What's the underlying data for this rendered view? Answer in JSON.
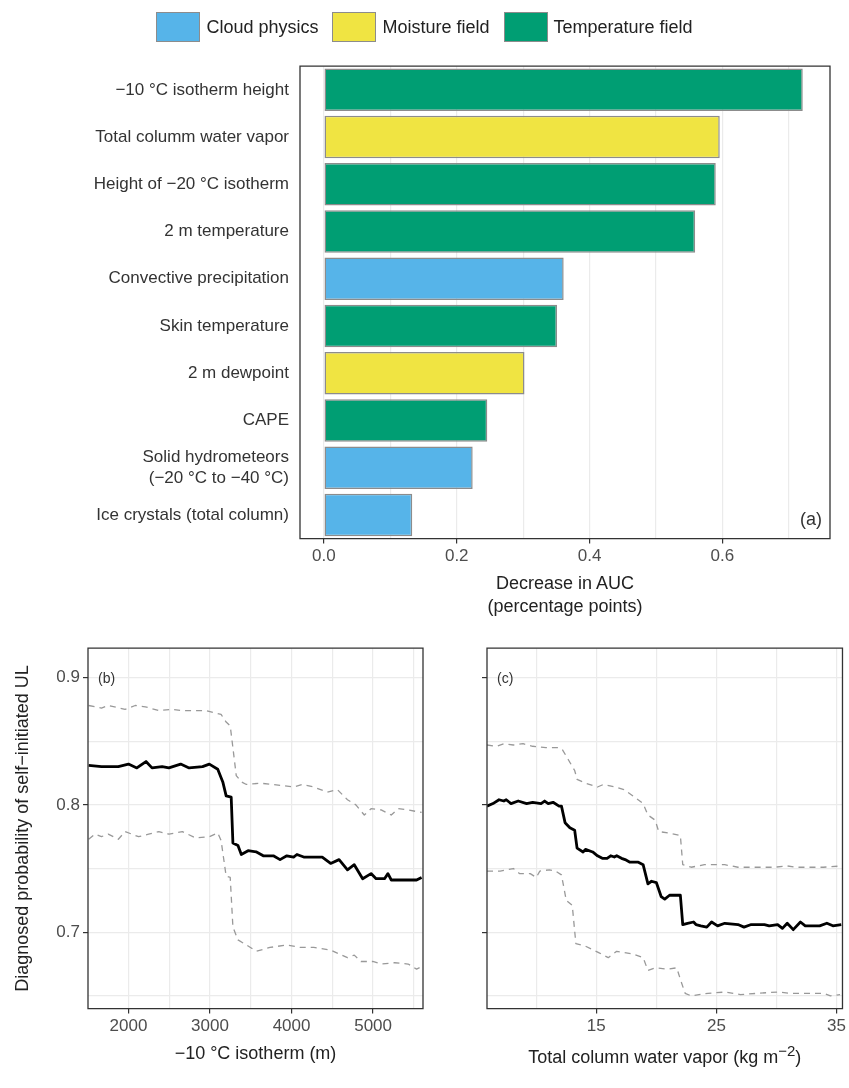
{
  "chart_data": [
    {
      "type": "bar",
      "orientation": "horizontal",
      "stacked": true,
      "legend": "top",
      "grid": "x",
      "categories": [
        "−10 °C isotherm height",
        "Total columm water vapor",
        "Height of −20 °C isotherm",
        "2 m temperature",
        "Convective precipitation",
        "Skin temperature",
        "2 m dewpoint",
        "CAPE",
        "Solid hydrometeors\n(−20 °C to −40 °C)",
        "Ice crystals (total column)"
      ],
      "series": [
        {
          "name": "Cloud physics",
          "color": "#56b4e9",
          "values": [
            null,
            null,
            null,
            null,
            0.361,
            null,
            null,
            null,
            0.224,
            0.133
          ]
        },
        {
          "name": "Moisture field",
          "color": "#f0e442",
          "values": [
            null,
            0.596,
            null,
            null,
            null,
            null,
            0.302,
            null,
            null,
            null
          ]
        },
        {
          "name": "Temperature field",
          "color": "#009e73",
          "values": [
            0.721,
            null,
            0.59,
            0.559,
            null,
            0.351,
            null,
            0.246,
            null,
            null
          ]
        }
      ],
      "xlim": [
        -0.036,
        0.762
      ],
      "xticks": [
        {
          "value": 0,
          "label": "0.0"
        },
        {
          "value": 0.1,
          "label": null
        },
        0.2,
        {
          "value": 0.3,
          "label": null
        },
        0.4,
        {
          "value": 0.5,
          "label": null
        },
        0.6,
        {
          "value": 0.7,
          "label": null
        }
      ],
      "xlabel": "Decrease in AUC\n(percentage points)",
      "annotations": [
        "(a)"
      ]
    },
    {
      "type": "line",
      "grid": true,
      "ylabel": "Diagnosed probability of self−initiated UL",
      "xlabel": "−10 °C isotherm (m)",
      "xlim": [
        1504,
        5612
      ],
      "xticks": [
        2000,
        {
          "value": 2500,
          "label": null
        },
        3000,
        {
          "value": 3500,
          "label": null
        },
        4000,
        {
          "value": 4500,
          "label": null
        },
        5000,
        {
          "value": 5500,
          "label": null
        }
      ],
      "ylim": [
        0.64,
        0.923
      ],
      "yticks": [
        {
          "value": 0.65,
          "label": null
        },
        0.7,
        {
          "value": 0.75,
          "label": null
        },
        0.8,
        {
          "value": 0.85,
          "label": null
        },
        0.9
      ],
      "series": [
        {
          "color": "#000000",
          "line_style": "solid",
          "x": [
            1512,
            1669,
            1876,
            2000,
            2103,
            2215,
            2289,
            2413,
            2496,
            2640,
            2744,
            2909,
            2992,
            3095,
            3157,
            3198,
            3260,
            3281,
            3343,
            3384,
            3467,
            3570,
            3653,
            3777,
            3859,
            3942,
            4025,
            4066,
            4149,
            4273,
            4376,
            4479,
            4583,
            4686,
            4769,
            4872,
            4975,
            5037,
            5140,
            5182,
            5223,
            5430,
            5533,
            5595
          ],
          "values": [
            0.831,
            0.83,
            0.83,
            0.832,
            0.829,
            0.834,
            0.829,
            0.83,
            0.829,
            0.832,
            0.829,
            0.83,
            0.832,
            0.828,
            0.818,
            0.807,
            0.806,
            0.77,
            0.768,
            0.761,
            0.764,
            0.763,
            0.76,
            0.76,
            0.757,
            0.76,
            0.759,
            0.761,
            0.759,
            0.759,
            0.759,
            0.754,
            0.757,
            0.749,
            0.753,
            0.742,
            0.746,
            0.742,
            0.742,
            0.746,
            0.741,
            0.741,
            0.741,
            0.743
          ]
        },
        {
          "color": "#999999",
          "line_style": "dashed",
          "x": [
            1512,
            1669,
            1752,
            1959,
            2083,
            2207,
            2372,
            2537,
            2661,
            2785,
            2950,
            3074,
            3136,
            3198,
            3248,
            3273,
            3322,
            3384,
            3446,
            3612,
            3777,
            4025,
            4128,
            4273,
            4438,
            4562,
            4686,
            4789,
            4892,
            4975,
            5099,
            5223,
            5306,
            5430,
            5595
          ],
          "values": [
            0.878,
            0.876,
            0.878,
            0.875,
            0.878,
            0.877,
            0.874,
            0.875,
            0.874,
            0.874,
            0.874,
            0.872,
            0.871,
            0.865,
            0.862,
            0.849,
            0.823,
            0.818,
            0.816,
            0.817,
            0.816,
            0.814,
            0.816,
            0.814,
            0.81,
            0.812,
            0.804,
            0.8,
            0.792,
            0.797,
            0.796,
            0.792,
            0.797,
            0.796,
            0.794
          ]
        },
        {
          "color": "#999999",
          "line_style": "dashed",
          "x": [
            1512,
            1587,
            1669,
            1752,
            1876,
            1959,
            2124,
            2248,
            2372,
            2496,
            2661,
            2826,
            2992,
            3095,
            3136,
            3198,
            3248,
            3281,
            3343,
            3446,
            3570,
            3735,
            3942,
            4107,
            4273,
            4479,
            4686,
            4769,
            4851,
            4996,
            5099,
            5264,
            5430,
            5533,
            5595
          ],
          "values": [
            0.773,
            0.777,
            0.775,
            0.777,
            0.773,
            0.779,
            0.775,
            0.777,
            0.779,
            0.777,
            0.779,
            0.774,
            0.775,
            0.778,
            0.772,
            0.744,
            0.743,
            0.704,
            0.694,
            0.69,
            0.685,
            0.688,
            0.69,
            0.688,
            0.688,
            0.686,
            0.68,
            0.682,
            0.677,
            0.677,
            0.675,
            0.676,
            0.675,
            0.671,
            0.673
          ]
        }
      ],
      "annotations": [
        "(b)"
      ]
    },
    {
      "type": "line",
      "grid": true,
      "tick_labels": "x",
      "xlabel": "Total column water vapor (kg m$^{−2}$)",
      "xlim": [
        5.9,
        35.5
      ],
      "xticks": [
        {
          "value": 10,
          "label": null
        },
        15,
        {
          "value": 20,
          "label": null
        },
        25,
        {
          "value": 30,
          "label": null
        },
        35
      ],
      "ylim": [
        0.64,
        0.923
      ],
      "yticks": [
        {
          "value": 0.65,
          "label": null
        },
        0.7,
        {
          "value": 0.75,
          "label": null
        },
        0.8,
        {
          "value": 0.85,
          "label": null
        },
        0.9
      ],
      "series": [
        {
          "color": "#000000",
          "line_style": "solid",
          "x": [
            5.9,
            6.4,
            6.9,
            7.3,
            7.5,
            7.9,
            8.5,
            9.2,
            9.7,
            10.4,
            10.7,
            11.0,
            11.4,
            11.9,
            12.1,
            12.4,
            12.8,
            13.2,
            13.4,
            13.9,
            14.1,
            14.7,
            15.1,
            15.5,
            15.9,
            16.2,
            16.5,
            16.7,
            17.1,
            17.4,
            17.8,
            18.5,
            18.9,
            19.3,
            19.6,
            20.0,
            20.4,
            20.7,
            21.1,
            22.0,
            22.2,
            22.6,
            23.1,
            23.3,
            23.7,
            24.2,
            24.6,
            25.1,
            25.7,
            26.8,
            27.3,
            27.9,
            29.0,
            29.4,
            30.1,
            30.5,
            30.9,
            31.4,
            32.0,
            32.4,
            33.6,
            34.2,
            34.7,
            35.4
          ],
          "values": [
            0.799,
            0.801,
            0.804,
            0.803,
            0.804,
            0.801,
            0.803,
            0.801,
            0.802,
            0.801,
            0.803,
            0.801,
            0.802,
            0.799,
            0.799,
            0.786,
            0.782,
            0.78,
            0.766,
            0.763,
            0.765,
            0.763,
            0.76,
            0.758,
            0.758,
            0.76,
            0.759,
            0.76,
            0.758,
            0.757,
            0.755,
            0.755,
            0.753,
            0.738,
            0.74,
            0.739,
            0.728,
            0.726,
            0.729,
            0.729,
            0.706,
            0.707,
            0.708,
            0.706,
            0.705,
            0.704,
            0.708,
            0.705,
            0.707,
            0.706,
            0.704,
            0.706,
            0.706,
            0.705,
            0.706,
            0.703,
            0.707,
            0.702,
            0.708,
            0.705,
            0.705,
            0.707,
            0.705,
            0.706
          ]
        },
        {
          "color": "#999999",
          "line_style": "dashed",
          "x": [
            5.9,
            6.7,
            7.3,
            8.1,
            8.9,
            9.7,
            10.8,
            11.9,
            12.2,
            12.7,
            13.2,
            13.4,
            14.1,
            15.1,
            15.6,
            16.6,
            17.3,
            18.2,
            18.9,
            19.3,
            19.9,
            20.2,
            21.0,
            22.0,
            22.2,
            22.9,
            24.0,
            25.7,
            26.8,
            28.4,
            29.8,
            30.9,
            31.7,
            32.8,
            33.9,
            35.4
          ],
          "values": [
            0.847,
            0.846,
            0.848,
            0.847,
            0.848,
            0.846,
            0.845,
            0.845,
            0.843,
            0.835,
            0.827,
            0.82,
            0.817,
            0.814,
            0.816,
            0.814,
            0.812,
            0.806,
            0.801,
            0.792,
            0.788,
            0.779,
            0.778,
            0.776,
            0.753,
            0.751,
            0.753,
            0.753,
            0.751,
            0.751,
            0.751,
            0.752,
            0.751,
            0.751,
            0.751,
            0.752
          ]
        },
        {
          "color": "#999999",
          "line_style": "dashed",
          "x": [
            5.9,
            7.0,
            8.1,
            8.6,
            9.5,
            10.0,
            10.3,
            11.1,
            11.6,
            12.1,
            12.5,
            13.0,
            13.3,
            14.1,
            15.2,
            16.0,
            16.7,
            18.0,
            18.9,
            19.3,
            19.9,
            20.9,
            21.7,
            22.0,
            22.4,
            22.9,
            24.3,
            25.7,
            27.0,
            28.4,
            30.1,
            31.2,
            32.8,
            33.9,
            34.5,
            35.3
          ],
          "values": [
            0.748,
            0.748,
            0.75,
            0.746,
            0.746,
            0.743,
            0.748,
            0.749,
            0.748,
            0.745,
            0.725,
            0.721,
            0.691,
            0.689,
            0.684,
            0.68,
            0.685,
            0.683,
            0.68,
            0.67,
            0.672,
            0.671,
            0.672,
            0.663,
            0.652,
            0.65,
            0.652,
            0.653,
            0.651,
            0.652,
            0.653,
            0.652,
            0.652,
            0.652,
            0.65,
            0.651
          ]
        }
      ],
      "annotations": [
        "(c)"
      ]
    }
  ]
}
